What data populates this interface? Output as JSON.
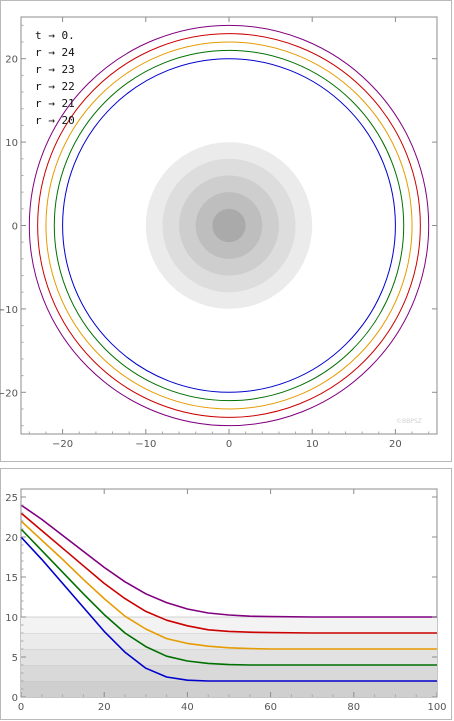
{
  "chart_data": [
    {
      "type": "scatter",
      "title": "",
      "xlabel": "",
      "ylabel": "",
      "xlim": [
        -25,
        25
      ],
      "ylim": [
        -25,
        25
      ],
      "x_ticks": [
        -20,
        -10,
        0,
        10,
        20
      ],
      "y_ticks": [
        -20,
        -10,
        0,
        10,
        20
      ],
      "grid": false,
      "legend_position": "top-left",
      "legend": [
        "t → 0.",
        "r → 24",
        "r → 23",
        "r → 22",
        "r → 21",
        "r → 20"
      ],
      "circles": [
        {
          "r": 24,
          "color": "#800080"
        },
        {
          "r": 23,
          "color": "#cc0000"
        },
        {
          "r": 22,
          "color": "#e69b00"
        },
        {
          "r": 21,
          "color": "#007000"
        },
        {
          "r": 20,
          "color": "#0000cc"
        }
      ],
      "shaded_disks": [
        {
          "r": 10,
          "color": "#ebebeb"
        },
        {
          "r": 8,
          "color": "#dddddd"
        },
        {
          "r": 6,
          "color": "#cecece"
        },
        {
          "r": 4,
          "color": "#bebebe"
        },
        {
          "r": 2,
          "color": "#aaaaaa"
        }
      ],
      "watermark": "©BBPSZ"
    },
    {
      "type": "line",
      "title": "",
      "xlabel": "",
      "ylabel": "",
      "xlim": [
        0,
        100
      ],
      "ylim": [
        0,
        26
      ],
      "x_ticks": [
        0,
        20,
        40,
        60,
        80,
        100
      ],
      "y_ticks": [
        0,
        5,
        10,
        15,
        20,
        25
      ],
      "grid": false,
      "bands": [
        {
          "from": 0,
          "to": 2,
          "color": "#cfcfcf"
        },
        {
          "from": 2,
          "to": 4,
          "color": "#d9d9d9"
        },
        {
          "from": 4,
          "to": 6,
          "color": "#e2e2e2"
        },
        {
          "from": 6,
          "to": 8,
          "color": "#ebebeb"
        },
        {
          "from": 8,
          "to": 10,
          "color": "#f3f3f3"
        }
      ],
      "series": [
        {
          "color": "#800080",
          "x": [
            0,
            5,
            10,
            15,
            20,
            25,
            30,
            35,
            40,
            45,
            50,
            55,
            60,
            70,
            80,
            90,
            100
          ],
          "y": [
            24,
            22.2,
            20.2,
            18.2,
            16.2,
            14.4,
            12.9,
            11.8,
            11.0,
            10.5,
            10.25,
            10.1,
            10.05,
            10,
            10,
            10,
            10
          ]
        },
        {
          "color": "#cc0000",
          "x": [
            0,
            5,
            10,
            15,
            20,
            25,
            30,
            35,
            40,
            45,
            50,
            55,
            60,
            70,
            80,
            90,
            100
          ],
          "y": [
            23,
            20.8,
            18.6,
            16.4,
            14.2,
            12.3,
            10.7,
            9.6,
            8.9,
            8.4,
            8.2,
            8.1,
            8.05,
            8,
            8,
            8,
            8
          ]
        },
        {
          "color": "#e69b00",
          "x": [
            0,
            5,
            10,
            15,
            20,
            25,
            30,
            35,
            40,
            45,
            50,
            55,
            60,
            70,
            80,
            90,
            100
          ],
          "y": [
            22,
            19.6,
            17.2,
            14.7,
            12.3,
            10.1,
            8.5,
            7.3,
            6.7,
            6.35,
            6.15,
            6.05,
            6.0,
            6,
            6,
            6,
            6
          ]
        },
        {
          "color": "#007000",
          "x": [
            0,
            5,
            10,
            15,
            20,
            25,
            30,
            35,
            40,
            45,
            50,
            55,
            60,
            70,
            80,
            90,
            100
          ],
          "y": [
            21,
            18.3,
            15.6,
            12.9,
            10.3,
            8.0,
            6.3,
            5.1,
            4.5,
            4.2,
            4.05,
            4.0,
            4.0,
            4,
            4,
            4,
            4
          ]
        },
        {
          "color": "#0000cc",
          "x": [
            0,
            5,
            10,
            15,
            20,
            25,
            30,
            35,
            40,
            45,
            50,
            55,
            60,
            70,
            80,
            90,
            100
          ],
          "y": [
            20,
            17.2,
            14.2,
            11.2,
            8.2,
            5.6,
            3.6,
            2.5,
            2.1,
            2.0,
            2.0,
            2.0,
            2.0,
            2,
            2,
            2,
            2
          ]
        }
      ]
    }
  ]
}
